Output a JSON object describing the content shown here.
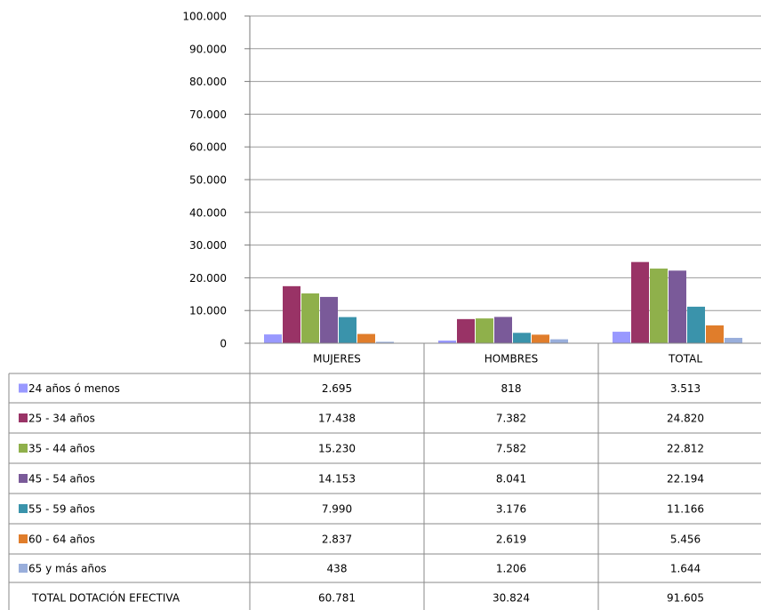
{
  "chart_data": {
    "type": "bar",
    "categories": [
      "MUJERES",
      "HOMBRES",
      "TOTAL"
    ],
    "series": [
      {
        "name": "24 años ó menos",
        "values": [
          2695,
          818,
          3513
        ],
        "value_labels": [
          "2.695",
          "818",
          "3.513"
        ],
        "color": "#9999ff"
      },
      {
        "name": "25 - 34 años",
        "values": [
          17438,
          7382,
          24820
        ],
        "value_labels": [
          "17.438",
          "7.382",
          "24.820"
        ],
        "color": "#993366"
      },
      {
        "name": "35 - 44 años",
        "values": [
          15230,
          7582,
          22812
        ],
        "value_labels": [
          "15.230",
          "7.582",
          "22.812"
        ],
        "color": "#8fb04b"
      },
      {
        "name": "45 - 54 años",
        "values": [
          14153,
          8041,
          22194
        ],
        "value_labels": [
          "14.153",
          "8.041",
          "22.194"
        ],
        "color": "#7a5a99"
      },
      {
        "name": "55 - 59 años",
        "values": [
          7990,
          3176,
          11166
        ],
        "value_labels": [
          "7.990",
          "3.176",
          "11.166"
        ],
        "color": "#3a93ab"
      },
      {
        "name": "60 - 64 años",
        "values": [
          2837,
          2619,
          5456
        ],
        "value_labels": [
          "2.837",
          "2.619",
          "5.456"
        ],
        "color": "#e07d2b"
      },
      {
        "name": " 65  y más años",
        "values": [
          438,
          1206,
          1644
        ],
        "value_labels": [
          "438",
          "1.206",
          "1.644"
        ],
        "color": "#99aedb"
      }
    ],
    "total_row": {
      "label": "TOTAL DOTACIÓN EFECTIVA",
      "values": [
        60781,
        30824,
        91605
      ],
      "value_labels": [
        "60.781",
        "30.824",
        "91.605"
      ]
    },
    "ylim": [
      0,
      100000
    ],
    "y_ticks": [
      0,
      10000,
      20000,
      30000,
      40000,
      50000,
      60000,
      70000,
      80000,
      90000,
      100000
    ],
    "y_tick_labels": [
      "0",
      "10.000",
      "20.000",
      "30.000",
      "40.000",
      "50.000",
      "60.000",
      "70.000",
      "80.000",
      "90.000",
      "100.000"
    ],
    "grid": true,
    "legend": "data table below chart",
    "title": "",
    "xlabel": "",
    "ylabel": ""
  }
}
